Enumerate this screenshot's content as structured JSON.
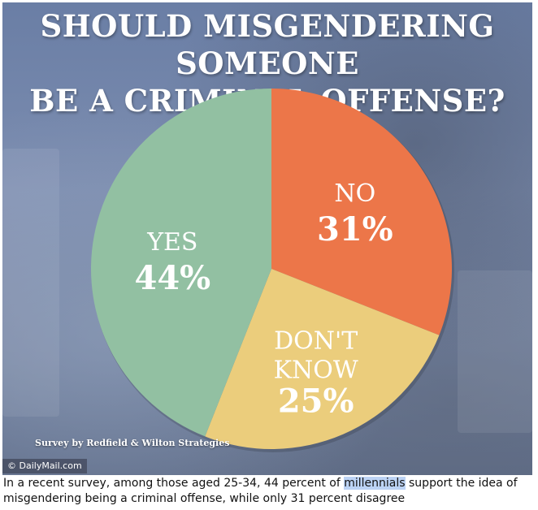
{
  "title": {
    "line1": "SHOULD MISGENDERING SOMEONE",
    "line2": "BE A CRIMINAL OFFENSE?"
  },
  "chart_data": {
    "type": "pie",
    "title": "SHOULD MISGENDERING SOMEONE BE A CRIMINAL OFFENSE?",
    "slices": [
      {
        "label": "NO",
        "value": 31,
        "value_label": "31%",
        "color": "#ec7649"
      },
      {
        "label": "DON'T KNOW",
        "label_lines": [
          "DON'T",
          "KNOW"
        ],
        "value": 25,
        "value_label": "25%",
        "color": "#ebcd7c"
      },
      {
        "label": "YES",
        "value": 44,
        "value_label": "44%",
        "color": "#92c0a2"
      }
    ]
  },
  "source": "Survey by Redfield & Wilton Strategies",
  "credit": "© DailyMail.com",
  "caption": {
    "before": "In a recent survey, among those aged 25-34, 44 percent of ",
    "highlight": "millennials",
    "after": " support the idea of misgendering being a criminal offense, while only 31 percent disagree"
  },
  "colors": {
    "background": "#6f7f9f",
    "highlight": "#bcd3f5"
  }
}
